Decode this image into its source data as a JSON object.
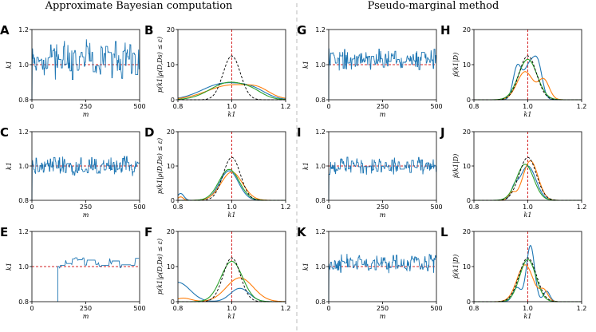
{
  "figure": {
    "title_left": "Approximate Bayesian computation",
    "title_right": "Pseudo-marginal method"
  },
  "colors": {
    "series_blue": "#1f77b4",
    "series_orange": "#ff7f0e",
    "series_green": "#2ca02c",
    "reference_black": "#000000",
    "true_value_red": "#d62728",
    "divider": "#bbbbbb"
  },
  "chart_data": [
    {
      "panel": "A",
      "type": "line",
      "method": "abc",
      "trace_mode": "dense",
      "xlabel": "m",
      "ylabel": "k1",
      "xlim": [
        0,
        500
      ],
      "ylim": [
        0.8,
        1.2
      ],
      "xticks": [
        "0",
        "250",
        "500"
      ],
      "yticks": [
        "0.8",
        "1.0",
        "1.2"
      ],
      "true_value": 1.0,
      "level": 1.03,
      "spread": 0.08,
      "start": 0,
      "seed": 11
    },
    {
      "panel": "C",
      "type": "line",
      "method": "abc",
      "trace_mode": "dense",
      "xlabel": "m",
      "ylabel": "k1",
      "xlim": [
        0,
        500
      ],
      "ylim": [
        0.8,
        1.2
      ],
      "xticks": [
        "0",
        "250",
        "500"
      ],
      "yticks": [
        "0.8",
        "1.0",
        "1.2"
      ],
      "true_value": 1.0,
      "level": 1.0,
      "spread": 0.045,
      "start": 0,
      "seed": 23
    },
    {
      "panel": "E",
      "type": "line",
      "method": "abc",
      "trace_mode": "sticky",
      "xlabel": "m",
      "ylabel": "k1",
      "xlim": [
        0,
        500
      ],
      "ylim": [
        0.8,
        1.2
      ],
      "xticks": [
        "0",
        "250",
        "500"
      ],
      "yticks": [
        "0.8",
        "1.0",
        "1.2"
      ],
      "true_value": 1.0,
      "level": 1.02,
      "spread": 0.03,
      "start": 120,
      "seed": 37
    },
    {
      "panel": "G",
      "type": "line",
      "method": "pseudo-marginal",
      "trace_mode": "dense",
      "xlabel": "m",
      "ylabel": "k1",
      "xlim": [
        0,
        500
      ],
      "ylim": [
        0.8,
        1.2
      ],
      "xticks": [
        "0",
        "250",
        "500"
      ],
      "yticks": [
        "0.8",
        "1.0",
        "1.2"
      ],
      "true_value": 1.0,
      "level": 1.03,
      "spread": 0.045,
      "start": 0,
      "seed": 41
    },
    {
      "panel": "I",
      "type": "line",
      "method": "pseudo-marginal",
      "trace_mode": "dense",
      "xlabel": "m",
      "ylabel": "k1",
      "xlim": [
        0,
        500
      ],
      "ylim": [
        0.8,
        1.2
      ],
      "xticks": [
        "0",
        "250",
        "500"
      ],
      "yticks": [
        "0.8",
        "1.0",
        "1.2"
      ],
      "true_value": 1.0,
      "level": 1.0,
      "spread": 0.04,
      "start": 0,
      "seed": 53
    },
    {
      "panel": "K",
      "type": "line",
      "method": "pseudo-marginal",
      "trace_mode": "dense",
      "xlabel": "m",
      "ylabel": "k1",
      "xlim": [
        0,
        500
      ],
      "ylim": [
        0.8,
        1.2
      ],
      "xticks": [
        "0",
        "250",
        "500"
      ],
      "yticks": [
        "0.8",
        "1.0",
        "1.2"
      ],
      "true_value": 1.0,
      "level": 1.02,
      "spread": 0.04,
      "start": 0,
      "seed": 67
    },
    {
      "panel": "B",
      "type": "line",
      "method": "abc",
      "xlabel": "k1",
      "ylabel": "p(k1|ρ(D,Ds) ≤ ε)",
      "xlim": [
        0.8,
        1.2
      ],
      "ylim": [
        0,
        20
      ],
      "xticks": [
        "0.8",
        "1.0",
        "1.2"
      ],
      "yticks": [
        "0",
        "10",
        "20"
      ],
      "true_value": 1.0,
      "series": [
        {
          "name": "reference",
          "color": "#000000",
          "dashed": true,
          "components": [
            {
              "mu": 1.0,
              "sd": 0.032,
              "h": 12.5
            }
          ]
        },
        {
          "name": "blue",
          "color": "#1f77b4",
          "components": [
            {
              "mu": 0.97,
              "sd": 0.08,
              "h": 4.6
            },
            {
              "mu": 1.08,
              "sd": 0.05,
              "h": 2.0
            }
          ]
        },
        {
          "name": "orange",
          "color": "#ff7f0e",
          "components": [
            {
              "mu": 1.0,
              "sd": 0.09,
              "h": 4.2
            },
            {
              "mu": 1.1,
              "sd": 0.04,
              "h": 1.5
            }
          ]
        },
        {
          "name": "green",
          "color": "#2ca02c",
          "components": [
            {
              "mu": 0.99,
              "sd": 0.07,
              "h": 4.9
            },
            {
              "mu": 1.08,
              "sd": 0.04,
              "h": 1.2
            }
          ]
        }
      ]
    },
    {
      "panel": "D",
      "type": "line",
      "method": "abc",
      "xlabel": "k1",
      "ylabel": "p(k1|ρ(D,Ds) ≤ ε)",
      "xlim": [
        0.8,
        1.2
      ],
      "ylim": [
        0,
        20
      ],
      "xticks": [
        "0.8",
        "1.0",
        "1.2"
      ],
      "yticks": [
        "0",
        "10",
        "20"
      ],
      "true_value": 1.0,
      "series": [
        {
          "name": "reference",
          "color": "#000000",
          "dashed": true,
          "components": [
            {
              "mu": 1.0,
              "sd": 0.032,
              "h": 12.5
            }
          ]
        },
        {
          "name": "blue",
          "color": "#1f77b4",
          "components": [
            {
              "mu": 0.99,
              "sd": 0.035,
              "h": 8.6
            },
            {
              "mu": 0.81,
              "sd": 0.012,
              "h": 2.0
            }
          ]
        },
        {
          "name": "orange",
          "color": "#ff7f0e",
          "components": [
            {
              "mu": 1.0,
              "sd": 0.04,
              "h": 8.2
            },
            {
              "mu": 0.81,
              "sd": 0.01,
              "h": 1.0
            }
          ]
        },
        {
          "name": "green",
          "color": "#2ca02c",
          "components": [
            {
              "mu": 0.99,
              "sd": 0.038,
              "h": 9.0
            }
          ]
        }
      ]
    },
    {
      "panel": "F",
      "type": "line",
      "method": "abc",
      "xlabel": "k1",
      "ylabel": "p(k1|ρ(D,Ds) ≤ ε)",
      "xlim": [
        0.8,
        1.2
      ],
      "ylim": [
        0,
        20
      ],
      "xticks": [
        "0.8",
        "1.0",
        "1.2"
      ],
      "yticks": [
        "0",
        "10",
        "20"
      ],
      "true_value": 1.0,
      "series": [
        {
          "name": "reference",
          "color": "#000000",
          "dashed": true,
          "components": [
            {
              "mu": 1.0,
              "sd": 0.032,
              "h": 12.5
            }
          ]
        },
        {
          "name": "blue",
          "color": "#1f77b4",
          "components": [
            {
              "mu": 0.8,
              "sd": 0.045,
              "h": 5.5
            },
            {
              "mu": 1.03,
              "sd": 0.035,
              "h": 3.8
            }
          ]
        },
        {
          "name": "orange",
          "color": "#ff7f0e",
          "components": [
            {
              "mu": 1.03,
              "sd": 0.05,
              "h": 6.8
            },
            {
              "mu": 0.82,
              "sd": 0.03,
              "h": 1.0
            }
          ]
        },
        {
          "name": "green",
          "color": "#2ca02c",
          "components": [
            {
              "mu": 1.0,
              "sd": 0.04,
              "h": 11.5
            }
          ]
        }
      ]
    },
    {
      "panel": "H",
      "type": "line",
      "method": "pseudo-marginal",
      "xlabel": "k1",
      "ylabel": "p̂(k1|D)",
      "xlim": [
        0.8,
        1.2
      ],
      "ylim": [
        0,
        20
      ],
      "xticks": [
        "0.8",
        "1.0",
        "1.2"
      ],
      "yticks": [
        "0",
        "10",
        "20"
      ],
      "true_value": 1.0,
      "series": [
        {
          "name": "reference",
          "color": "#000000",
          "dashed": true,
          "components": [
            {
              "mu": 1.0,
              "sd": 0.032,
              "h": 12.5
            }
          ]
        },
        {
          "name": "blue",
          "color": "#1f77b4",
          "components": [
            {
              "mu": 0.96,
              "sd": 0.015,
              "h": 8.5
            },
            {
              "mu": 1.01,
              "sd": 0.025,
              "h": 10.5
            },
            {
              "mu": 1.04,
              "sd": 0.015,
              "h": 6.0
            }
          ]
        },
        {
          "name": "orange",
          "color": "#ff7f0e",
          "components": [
            {
              "mu": 0.99,
              "sd": 0.03,
              "h": 8.0
            },
            {
              "mu": 1.06,
              "sd": 0.02,
              "h": 5.5
            }
          ]
        },
        {
          "name": "green",
          "color": "#2ca02c",
          "components": [
            {
              "mu": 1.0,
              "sd": 0.035,
              "h": 11.5
            }
          ]
        }
      ]
    },
    {
      "panel": "J",
      "type": "line",
      "method": "pseudo-marginal",
      "xlabel": "k1",
      "ylabel": "p̂(k1|D)",
      "xlim": [
        0.8,
        1.2
      ],
      "ylim": [
        0,
        20
      ],
      "xticks": [
        "0.8",
        "1.0",
        "1.2"
      ],
      "yticks": [
        "0",
        "10",
        "20"
      ],
      "true_value": 1.0,
      "series": [
        {
          "name": "reference",
          "color": "#000000",
          "dashed": true,
          "components": [
            {
              "mu": 1.0,
              "sd": 0.032,
              "h": 12.5
            }
          ]
        },
        {
          "name": "blue",
          "color": "#1f77b4",
          "components": [
            {
              "mu": 1.0,
              "sd": 0.03,
              "h": 10.0
            },
            {
              "mu": 0.95,
              "sd": 0.012,
              "h": 2.5
            }
          ]
        },
        {
          "name": "orange",
          "color": "#ff7f0e",
          "components": [
            {
              "mu": 1.01,
              "sd": 0.028,
              "h": 11.5
            },
            {
              "mu": 0.94,
              "sd": 0.012,
              "h": 2.0
            }
          ]
        },
        {
          "name": "green",
          "color": "#2ca02c",
          "components": [
            {
              "mu": 0.99,
              "sd": 0.032,
              "h": 10.5
            }
          ]
        }
      ]
    },
    {
      "panel": "L",
      "type": "line",
      "method": "pseudo-marginal",
      "xlabel": "k1",
      "ylabel": "p̂(k1|D)",
      "xlim": [
        0.8,
        1.2
      ],
      "ylim": [
        0,
        20
      ],
      "xticks": [
        "0.8",
        "1.0",
        "1.2"
      ],
      "yticks": [
        "0",
        "10",
        "20"
      ],
      "true_value": 1.0,
      "series": [
        {
          "name": "reference",
          "color": "#000000",
          "dashed": true,
          "components": [
            {
              "mu": 1.0,
              "sd": 0.032,
              "h": 12.5
            }
          ]
        },
        {
          "name": "blue",
          "color": "#1f77b4",
          "components": [
            {
              "mu": 1.01,
              "sd": 0.015,
              "h": 16.0
            },
            {
              "mu": 0.96,
              "sd": 0.015,
              "h": 4.0
            },
            {
              "mu": 1.07,
              "sd": 0.012,
              "h": 3.0
            }
          ]
        },
        {
          "name": "orange",
          "color": "#ff7f0e",
          "components": [
            {
              "mu": 0.99,
              "sd": 0.03,
              "h": 10.5
            },
            {
              "mu": 1.06,
              "sd": 0.015,
              "h": 3.0
            }
          ]
        },
        {
          "name": "green",
          "color": "#2ca02c",
          "components": [
            {
              "mu": 1.0,
              "sd": 0.03,
              "h": 12.0
            }
          ]
        }
      ]
    }
  ]
}
